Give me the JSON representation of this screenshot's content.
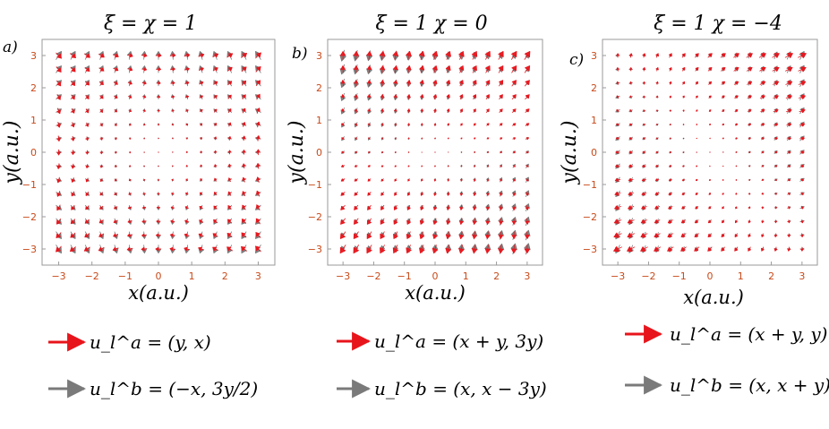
{
  "panels": [
    {
      "id": "a",
      "tag": "a)",
      "title": "ξ = χ = 1",
      "field_a": "(y, x)",
      "field_b": "(−x, 3y/2)",
      "legend_a": "u_l^a = (y, x)",
      "legend_b": "u_l^b = (−x, 3y/2)"
    },
    {
      "id": "b",
      "tag": "b)",
      "title": "ξ = 1  χ = 0",
      "field_a": "(x + y, 3y)",
      "field_b": "(x, x − 3y)",
      "legend_a": "u_l^a = (x + y, 3y)",
      "legend_b": "u_l^b = (x, x − 3y)"
    },
    {
      "id": "c",
      "tag": "c)",
      "title": "ξ = 1  χ = −4",
      "field_a": "(x + y, y)",
      "field_b": "(x, x + y)",
      "legend_a": "u_l^a = (x + y, y)",
      "legend_b": "u_l^b = (x, x + y)"
    }
  ],
  "axes": {
    "xlabel": "x(a.u.)",
    "ylabel": "y(a.u.)",
    "range": [
      -3.5,
      3.5
    ],
    "ticks": [
      -3,
      -2,
      -1,
      0,
      1,
      2,
      3
    ]
  },
  "colors": {
    "field_a": "#e8141b",
    "field_b": "#7a7a7a",
    "tick_text": "#c84a1a",
    "frame": "#9a9a9a"
  }
}
